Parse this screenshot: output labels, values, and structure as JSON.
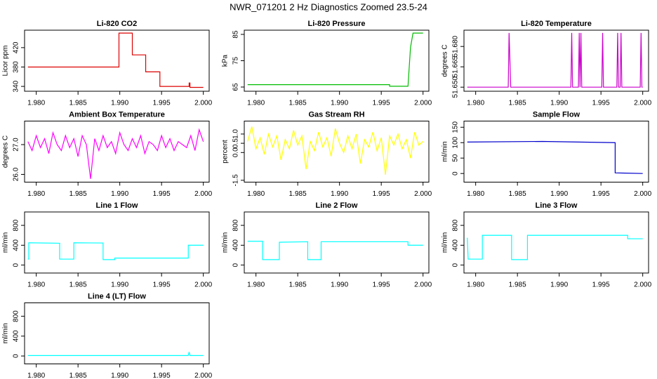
{
  "title": "NWR_071201  2 Hz Diagnostics Zoomed 23.5-24",
  "chart_data": [
    {
      "type": "line",
      "title": "Li-820 CO2",
      "ylabel": "Licor ppm",
      "color": "#dd0000",
      "x": [
        1.979,
        1.9899,
        1.9899,
        1.9915,
        1.9915,
        1.9931,
        1.9931,
        1.9948,
        1.9948,
        1.9983,
        1.9983,
        1.9984,
        1.9984,
        2.0
      ],
      "values": [
        380,
        380,
        450,
        450,
        405,
        405,
        370,
        370,
        340,
        340,
        347,
        347,
        338,
        338
      ],
      "xlim": [
        1.9786,
        2.0007
      ],
      "ylim": [
        330,
        456
      ],
      "xticks": [
        {
          "value": 1.98,
          "label": "1.980"
        },
        {
          "value": 1.985,
          "label": "1.985"
        },
        {
          "value": 1.99,
          "label": "1.990"
        },
        {
          "value": 1.995,
          "label": "1.995"
        },
        {
          "value": 2.0,
          "label": "2.000"
        }
      ],
      "yticks": [
        340,
        380,
        420
      ]
    },
    {
      "type": "line",
      "title": "Li-820 Pressure",
      "ylabel": "kPa",
      "color": "#00bb00",
      "x": [
        1.979,
        1.996,
        1.996,
        1.9982,
        1.9985,
        1.9988,
        2.0
      ],
      "values": [
        65.9,
        65.9,
        65.3,
        65.3,
        80,
        85.5,
        85.5
      ],
      "xlim": [
        1.9786,
        2.0007
      ],
      "ylim": [
        63.4,
        86.6
      ],
      "xticks": [
        {
          "value": 1.98,
          "label": "1.980"
        },
        {
          "value": 1.985,
          "label": "1.985"
        },
        {
          "value": 1.99,
          "label": "1.990"
        },
        {
          "value": 1.995,
          "label": "1.995"
        },
        {
          "value": 2.0,
          "label": "2.000"
        }
      ],
      "yticks": [
        65,
        75,
        85
      ]
    },
    {
      "type": "line",
      "title": "Li-820 Temperature",
      "ylabel": "degrees C",
      "color": "#cc00cc",
      "x": [
        1.979,
        1.9839,
        1.984,
        1.9841,
        1.9842,
        1.9914,
        1.9915,
        1.9916,
        1.9923,
        1.9924,
        1.9925,
        1.9926,
        1.9927,
        1.9951,
        1.9952,
        1.9953,
        1.9969,
        1.997,
        1.9971,
        1.9973,
        1.9974,
        1.9975,
        1.9997,
        1.9998,
        1.9999,
        2.0
      ],
      "values": [
        51.65,
        51.65,
        51.69,
        51.67,
        51.65,
        51.65,
        51.69,
        51.65,
        51.65,
        51.69,
        51.65,
        51.69,
        51.65,
        51.65,
        51.69,
        51.65,
        51.65,
        51.69,
        51.65,
        51.65,
        51.69,
        51.65,
        51.65,
        51.69,
        51.65,
        51.65
      ],
      "xlim": [
        1.9786,
        2.0007
      ],
      "ylim": [
        51.647,
        51.692
      ],
      "xticks": [
        {
          "value": 1.98,
          "label": "1.980"
        },
        {
          "value": 1.985,
          "label": "1.985"
        },
        {
          "value": 1.99,
          "label": "1.990"
        },
        {
          "value": 1.995,
          "label": "1.995"
        },
        {
          "value": 2.0,
          "label": "2.000"
        }
      ],
      "yticks": [
        {
          "value": 51.65,
          "label": "51.650"
        },
        {
          "value": 51.665,
          "label": "51.665"
        },
        {
          "value": 51.68,
          "label": "51.680"
        }
      ]
    },
    {
      "type": "line",
      "title": "Ambient Box Temperature",
      "ylabel": "degrees C",
      "color": "#ff00ff",
      "x": [
        1.979,
        1.9795,
        1.98,
        1.9805,
        1.981,
        1.9815,
        1.982,
        1.9825,
        1.983,
        1.9835,
        1.984,
        1.9845,
        1.985,
        1.9855,
        1.986,
        1.9865,
        1.987,
        1.9875,
        1.988,
        1.9885,
        1.989,
        1.9895,
        1.99,
        1.9905,
        1.991,
        1.9915,
        1.992,
        1.9925,
        1.993,
        1.9935,
        1.994,
        1.9945,
        1.995,
        1.9955,
        1.996,
        1.9965,
        1.997,
        1.9975,
        1.998,
        1.9985,
        1.999,
        1.9995,
        2.0
      ],
      "values": [
        27.1,
        26.8,
        27.3,
        26.9,
        27.2,
        26.7,
        27.4,
        27.0,
        26.8,
        27.3,
        26.9,
        27.2,
        26.6,
        27.3,
        27.0,
        25.85,
        27.2,
        26.8,
        27.3,
        26.9,
        27.1,
        26.7,
        27.4,
        27.0,
        26.8,
        27.2,
        26.9,
        27.3,
        26.7,
        27.1,
        27.0,
        26.8,
        27.3,
        26.9,
        27.2,
        26.8,
        27.1,
        27.0,
        26.9,
        27.3,
        26.8,
        27.5,
        27.1
      ],
      "xlim": [
        1.9786,
        2.0007
      ],
      "ylim": [
        25.74,
        27.79
      ],
      "xticks": [
        {
          "value": 1.98,
          "label": "1.980"
        },
        {
          "value": 1.985,
          "label": "1.985"
        },
        {
          "value": 1.99,
          "label": "1.990"
        },
        {
          "value": 1.995,
          "label": "1.995"
        },
        {
          "value": 2.0,
          "label": "2.000"
        }
      ],
      "yticks": [
        {
          "value": 26,
          "label": "26.0"
        },
        {
          "value": 27,
          "label": "27.0"
        }
      ]
    },
    {
      "type": "line",
      "title": "Gas Stream RH",
      "ylabel": "percent",
      "color": "#ffff00",
      "x": [
        1.979,
        1.9795,
        1.98,
        1.9805,
        1.981,
        1.9815,
        1.982,
        1.9825,
        1.983,
        1.9835,
        1.984,
        1.9845,
        1.985,
        1.9855,
        1.986,
        1.9865,
        1.987,
        1.9875,
        1.988,
        1.9885,
        1.989,
        1.9895,
        1.99,
        1.9905,
        1.991,
        1.9915,
        1.992,
        1.9925,
        1.993,
        1.9935,
        1.994,
        1.9945,
        1.995,
        1.9955,
        1.996,
        1.9965,
        1.997,
        1.9975,
        1.998,
        1.9985,
        1.999,
        1.9995,
        2.0
      ],
      "values": [
        0.6,
        1.4,
        0.2,
        0.8,
        -0.1,
        1.0,
        0.3,
        0.9,
        -0.4,
        0.7,
        0.2,
        1.2,
        0.4,
        0.9,
        -0.9,
        0.6,
        0.1,
        1.1,
        0.3,
        0.8,
        -0.2,
        1.3,
        0.5,
        0.0,
        0.9,
        0.2,
        1.0,
        -0.6,
        0.7,
        0.3,
        1.1,
        0.1,
        0.8,
        -1.2,
        0.9,
        0.4,
        1.0,
        0.2,
        0.7,
        -0.3,
        1.1,
        0.4,
        0.6
      ],
      "xlim": [
        1.9786,
        2.0007
      ],
      "ylim": [
        -1.6,
        1.7
      ],
      "xticks": [
        {
          "value": 1.98,
          "label": "1.980"
        },
        {
          "value": 1.985,
          "label": "1.985"
        },
        {
          "value": 1.99,
          "label": "1.990"
        },
        {
          "value": 1.995,
          "label": "1.995"
        },
        {
          "value": 2.0,
          "label": "2.000"
        }
      ],
      "yticks": [
        {
          "value": -1.5,
          "label": "-1.5"
        },
        {
          "value": 0,
          "label": "0.0"
        },
        0.5,
        {
          "value": 1,
          "label": "1.0"
        }
      ]
    },
    {
      "type": "line",
      "title": "Sample Flow",
      "ylabel": "ml/min",
      "color": "#0000cc",
      "x": [
        1.979,
        1.988,
        1.9967,
        1.9967,
        2.0
      ],
      "values": [
        102,
        104,
        100,
        2,
        0
      ],
      "xlim": [
        1.9786,
        2.0007
      ],
      "ylim": [
        -28,
        170
      ],
      "xticks": [
        {
          "value": 1.98,
          "label": "1.980"
        },
        {
          "value": 1.985,
          "label": "1.985"
        },
        {
          "value": 1.99,
          "label": "1.990"
        },
        {
          "value": 1.995,
          "label": "1.995"
        },
        {
          "value": 2.0,
          "label": "2.000"
        }
      ],
      "yticks": [
        0,
        50,
        100,
        150
      ]
    },
    {
      "type": "line",
      "title": "Line 1 Flow",
      "ylabel": "ml/min",
      "color": "#00ffff",
      "x": [
        1.979,
        1.9791,
        1.9791,
        1.9828,
        1.9828,
        1.9845,
        1.9845,
        1.988,
        1.988,
        1.9894,
        1.9894,
        1.9982,
        1.9982,
        2.0
      ],
      "values": [
        120,
        120,
        450,
        440,
        120,
        120,
        450,
        445,
        110,
        110,
        140,
        140,
        400,
        400
      ],
      "xlim": [
        1.9786,
        2.0007
      ],
      "ylim": [
        -160,
        1070
      ],
      "xticks": [
        {
          "value": 1.98,
          "label": "1.980"
        },
        {
          "value": 1.985,
          "label": "1.985"
        },
        {
          "value": 1.99,
          "label": "1.990"
        },
        {
          "value": 1.995,
          "label": "1.995"
        },
        {
          "value": 2.0,
          "label": "2.000"
        }
      ],
      "yticks": [
        0,
        400,
        800
      ]
    },
    {
      "type": "line",
      "title": "Line 2 Flow",
      "ylabel": "ml/min",
      "color": "#00ffff",
      "x": [
        1.979,
        1.9808,
        1.9808,
        1.9828,
        1.9828,
        1.9862,
        1.9862,
        1.9878,
        1.9878,
        1.9982,
        1.9982,
        2.0
      ],
      "values": [
        480,
        480,
        110,
        110,
        460,
        470,
        110,
        110,
        470,
        470,
        400,
        400
      ],
      "xlim": [
        1.9786,
        2.0007
      ],
      "ylim": [
        -160,
        1070
      ],
      "xticks": [
        {
          "value": 1.98,
          "label": "1.980"
        },
        {
          "value": 1.985,
          "label": "1.985"
        },
        {
          "value": 1.99,
          "label": "1.990"
        },
        {
          "value": 1.995,
          "label": "1.995"
        },
        {
          "value": 2.0,
          "label": "2.000"
        }
      ],
      "yticks": [
        0,
        400,
        800
      ]
    },
    {
      "type": "line",
      "title": "Line 3 Flow",
      "ylabel": "ml/min",
      "color": "#00ffff",
      "x": [
        1.979,
        1.9791,
        1.9791,
        1.9808,
        1.9808,
        1.9843,
        1.9843,
        1.9862,
        1.9862,
        1.9982,
        1.9982,
        2.0
      ],
      "values": [
        550,
        120,
        120,
        120,
        600,
        600,
        110,
        110,
        600,
        600,
        530,
        530
      ],
      "xlim": [
        1.9786,
        2.0007
      ],
      "ylim": [
        -160,
        1070
      ],
      "xticks": [
        {
          "value": 1.98,
          "label": "1.980"
        },
        {
          "value": 1.985,
          "label": "1.985"
        },
        {
          "value": 1.99,
          "label": "1.990"
        },
        {
          "value": 1.995,
          "label": "1.995"
        },
        {
          "value": 2.0,
          "label": "2.000"
        }
      ],
      "yticks": [
        0,
        400,
        800
      ]
    },
    {
      "type": "line",
      "title": "Line 4 (LT) Flow",
      "ylabel": "ml/min",
      "color": "#00ffff",
      "x": [
        1.979,
        1.9982,
        1.9983,
        1.9984,
        2.0
      ],
      "values": [
        10,
        10,
        80,
        10,
        10
      ],
      "xlim": [
        1.9786,
        2.0007
      ],
      "ylim": [
        -160,
        1070
      ],
      "xticks": [
        {
          "value": 1.98,
          "label": "1.980"
        },
        {
          "value": 1.985,
          "label": "1.985"
        },
        {
          "value": 1.99,
          "label": "1.990"
        },
        {
          "value": 1.995,
          "label": "1.995"
        },
        {
          "value": 2.0,
          "label": "2.000"
        }
      ],
      "yticks": [
        0,
        400,
        800
      ]
    }
  ]
}
